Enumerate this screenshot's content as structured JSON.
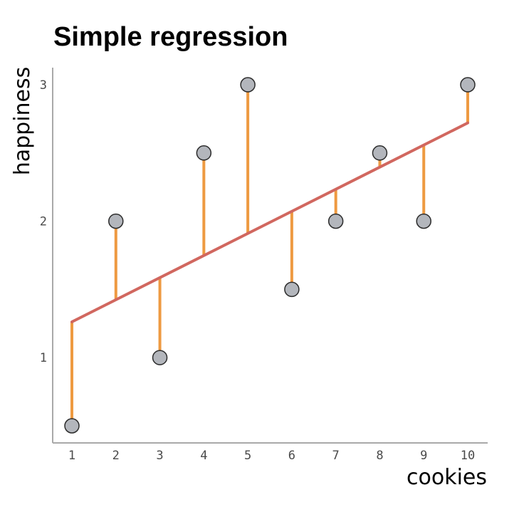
{
  "chart_data": {
    "type": "scatter",
    "title": "Simple regression",
    "xlabel": "cookies",
    "ylabel": "happiness",
    "x": [
      1,
      2,
      3,
      4,
      5,
      6,
      7,
      8,
      9,
      10
    ],
    "y": [
      0.5,
      2,
      1,
      2.5,
      3,
      1.5,
      2,
      2.5,
      2,
      3
    ],
    "regression_line": {
      "intercept": 1.1,
      "slope": 0.162
    },
    "xlim": [
      0.55,
      10.45
    ],
    "ylim": [
      0.37,
      3.12
    ],
    "x_ticks": [
      "1",
      "2",
      "3",
      "4",
      "5",
      "6",
      "7",
      "8",
      "9",
      "10"
    ],
    "y_ticks": [
      "1",
      "2",
      "3"
    ],
    "grid": false,
    "colors": {
      "point_fill": "#b3b6bc",
      "point_stroke": "#2b2b2b",
      "regression_line": "#d1675f",
      "residual": "#ee9a41",
      "axis": "#a9a9a9"
    }
  }
}
